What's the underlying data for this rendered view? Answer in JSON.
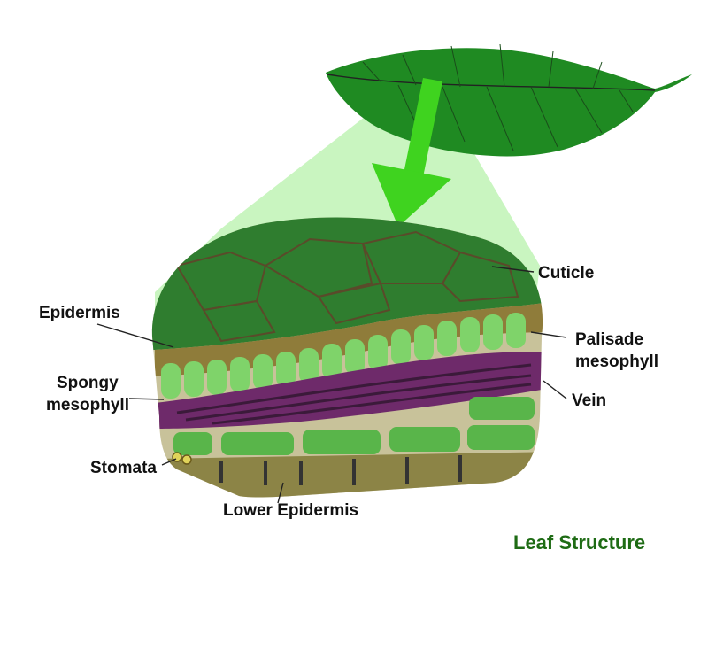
{
  "diagram": {
    "title": "Leaf Structure",
    "labels": {
      "cuticle": "Cuticle",
      "epidermis": "Epidermis",
      "palisade_line1": "Palisade",
      "palisade_line2": "mesophyll",
      "spongy_line1": "Spongy",
      "spongy_line2": "mesophyll",
      "vein": "Vein",
      "stomata": "Stomata",
      "lower_epidermis": "Lower Epidermis"
    }
  },
  "colors": {
    "title": "#1e6b14",
    "leaf": "#1f8a22",
    "leaf_dark": "#145f16",
    "arrow": "#3fd31f",
    "beam": "#c9f5c0",
    "cuticle_top": "#2f7d2f",
    "epidermis_band": "#8f7c3a",
    "palisade_cell": "#7fd36a",
    "vein": "#6e2a6a",
    "spongy_cell": "#59b54a",
    "tissue_bg": "#c8c29a",
    "lower_epidermis": "#8c8446"
  }
}
